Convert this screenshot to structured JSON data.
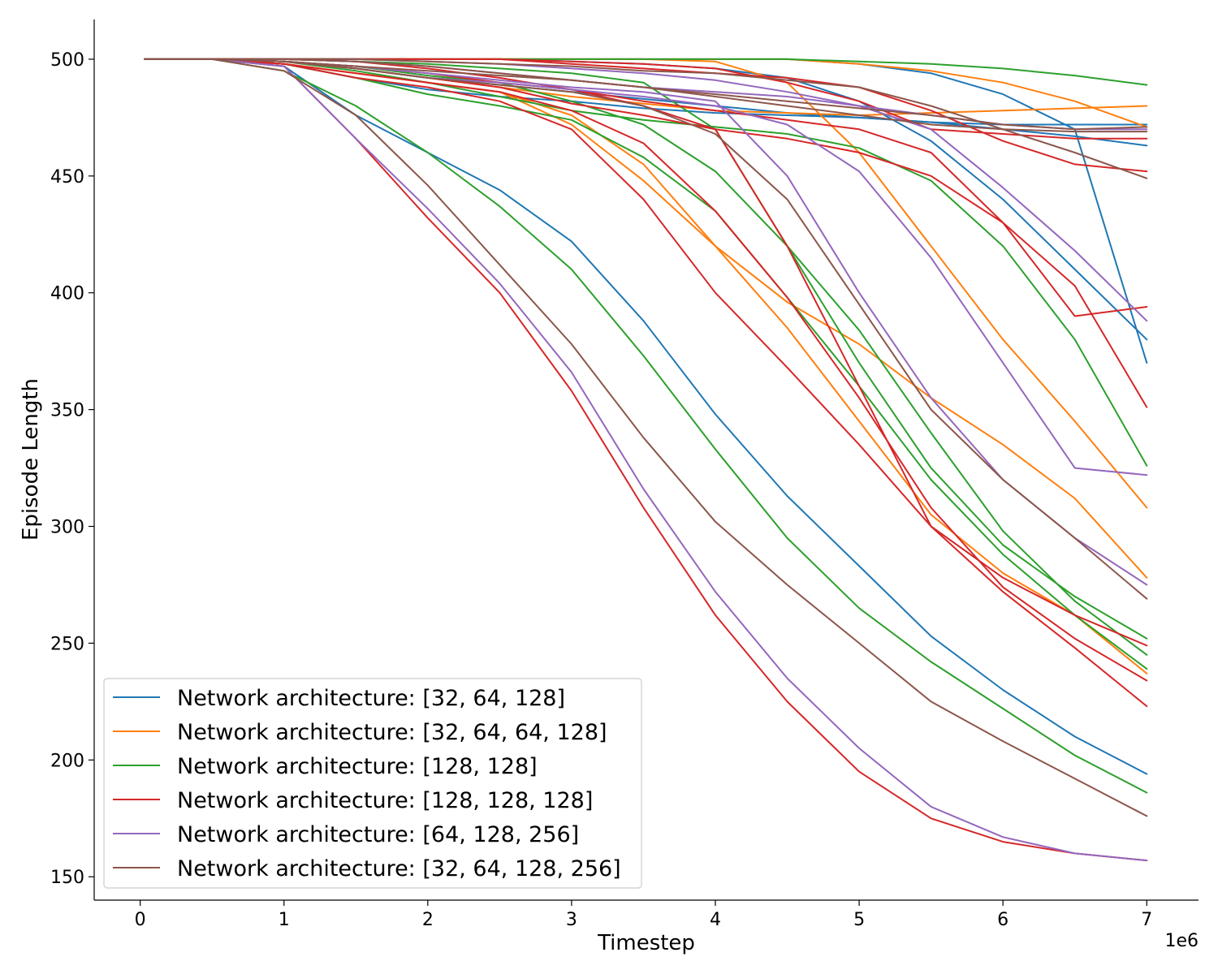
{
  "chart_data": {
    "type": "line",
    "title": "",
    "xlabel": "Timestep",
    "ylabel": "Episode Length",
    "x_offset_text": "1e6",
    "xlim": [
      -0.32,
      7.36
    ],
    "ylim": [
      140,
      517
    ],
    "xticks": [
      0,
      1,
      2,
      3,
      4,
      5,
      6,
      7
    ],
    "xtick_labels": [
      "0",
      "1",
      "2",
      "3",
      "4",
      "5",
      "6",
      "7"
    ],
    "yticks": [
      150,
      200,
      250,
      300,
      350,
      400,
      450,
      500
    ],
    "ytick_labels": [
      "150",
      "200",
      "250",
      "300",
      "350",
      "400",
      "450",
      "500"
    ],
    "grid": false,
    "legend_position": "lower-left",
    "x": [
      0.03,
      0.5,
      1.0,
      1.5,
      2.0,
      2.5,
      3.0,
      3.5,
      4.0,
      4.5,
      5.0,
      5.5,
      6.0,
      6.5,
      7.0
    ],
    "series": [
      {
        "name": "Network architecture: [32, 64, 128]",
        "color": "#1f77b4",
        "runs": [
          [
            500,
            500,
            497,
            476,
            460,
            444,
            422,
            388,
            348,
            313,
            283,
            253,
            230,
            210,
            194
          ],
          [
            500,
            500,
            498,
            492,
            487,
            484,
            482,
            479,
            477,
            476,
            475,
            473,
            472,
            472,
            472
          ],
          [
            500,
            500,
            499,
            496,
            492,
            489,
            486,
            483,
            480,
            477,
            475,
            473,
            470,
            467,
            463
          ],
          [
            500,
            500,
            500,
            500,
            500,
            500,
            499,
            498,
            496,
            492,
            482,
            465,
            440,
            410,
            380
          ],
          [
            500,
            500,
            500,
            500,
            500,
            500,
            500,
            500,
            500,
            500,
            498,
            494,
            485,
            470,
            370
          ]
        ]
      },
      {
        "name": "Network architecture: [32, 64, 64, 128]",
        "color": "#ff7f0e",
        "runs": [
          [
            500,
            500,
            498,
            494,
            490,
            486,
            472,
            448,
            420,
            396,
            378,
            355,
            335,
            312,
            278
          ],
          [
            500,
            500,
            498,
            494,
            490,
            486,
            476,
            455,
            420,
            385,
            345,
            305,
            280,
            262,
            237
          ],
          [
            500,
            500,
            499,
            496,
            492,
            488,
            484,
            481,
            478,
            477,
            476,
            477,
            478,
            479,
            480
          ],
          [
            500,
            500,
            500,
            500,
            500,
            500,
            500,
            500,
            499,
            490,
            460,
            420,
            380,
            345,
            308
          ],
          [
            500,
            500,
            500,
            500,
            500,
            500,
            500,
            500,
            500,
            500,
            498,
            495,
            490,
            482,
            471
          ]
        ]
      },
      {
        "name": "Network architecture: [128, 128]",
        "color": "#2ca02c",
        "runs": [
          [
            500,
            500,
            495,
            480,
            460,
            437,
            410,
            373,
            333,
            295,
            265,
            242,
            222,
            202,
            186
          ],
          [
            500,
            500,
            498,
            492,
            485,
            480,
            474,
            458,
            435,
            398,
            360,
            320,
            288,
            262,
            239
          ],
          [
            500,
            500,
            499,
            497,
            493,
            490,
            482,
            472,
            452,
            420,
            384,
            340,
            298,
            268,
            245
          ],
          [
            500,
            500,
            499,
            495,
            490,
            484,
            478,
            474,
            471,
            468,
            462,
            448,
            420,
            380,
            326
          ],
          [
            500,
            500,
            500,
            499,
            498,
            496,
            494,
            490,
            470,
            420,
            370,
            325,
            292,
            270,
            252
          ],
          [
            500,
            500,
            500,
            500,
            500,
            500,
            500,
            500,
            500,
            500,
            499,
            498,
            496,
            493,
            489
          ]
        ]
      },
      {
        "name": "Network architecture: [128, 128, 128]",
        "color": "#d62728",
        "runs": [
          [
            500,
            500,
            497,
            466,
            432,
            400,
            358,
            308,
            262,
            225,
            195,
            175,
            165,
            160,
            157
          ],
          [
            500,
            500,
            498,
            492,
            488,
            482,
            470,
            440,
            400,
            368,
            335,
            300,
            272,
            248,
            223
          ],
          [
            500,
            500,
            498,
            494,
            490,
            486,
            478,
            464,
            435,
            398,
            355,
            308,
            274,
            252,
            234
          ],
          [
            500,
            500,
            499,
            496,
            492,
            488,
            481,
            476,
            470,
            466,
            460,
            450,
            430,
            403,
            351
          ],
          [
            500,
            500,
            499,
            497,
            494,
            490,
            487,
            482,
            478,
            474,
            470,
            460,
            430,
            390,
            394
          ],
          [
            500,
            500,
            500,
            500,
            500,
            500,
            498,
            496,
            494,
            492,
            488,
            478,
            465,
            455,
            452
          ],
          [
            500,
            500,
            500,
            499,
            496,
            492,
            487,
            480,
            470,
            420,
            360,
            300,
            278,
            262,
            249
          ],
          [
            500,
            500,
            500,
            500,
            500,
            500,
            499,
            498,
            496,
            490,
            482,
            470,
            468,
            466,
            466
          ]
        ]
      },
      {
        "name": "Network architecture: [64, 128, 256]",
        "color": "#9467bd",
        "runs": [
          [
            500,
            500,
            497,
            466,
            436,
            404,
            366,
            316,
            272,
            235,
            205,
            180,
            167,
            160,
            157
          ],
          [
            500,
            500,
            499,
            496,
            492,
            490,
            487,
            484,
            480,
            472,
            452,
            415,
            370,
            325,
            322
          ],
          [
            500,
            500,
            499,
            497,
            494,
            491,
            488,
            486,
            482,
            450,
            400,
            355,
            320,
            295,
            275
          ],
          [
            500,
            500,
            500,
            499,
            497,
            494,
            491,
            488,
            486,
            484,
            480,
            470,
            445,
            418,
            388
          ],
          [
            500,
            500,
            500,
            500,
            499,
            498,
            496,
            494,
            491,
            486,
            480,
            476,
            472,
            470,
            470
          ]
        ]
      },
      {
        "name": "Network architecture: [32, 64, 128, 256]",
        "color": "#8c564b",
        "runs": [
          [
            500,
            500,
            495,
            476,
            446,
            412,
            378,
            338,
            302,
            275,
            250,
            225,
            208,
            192,
            176
          ],
          [
            500,
            500,
            499,
            496,
            492,
            489,
            486,
            480,
            468,
            440,
            395,
            350,
            320,
            295,
            269
          ],
          [
            500,
            500,
            499,
            497,
            495,
            493,
            491,
            488,
            484,
            480,
            476,
            472,
            470,
            469,
            469
          ],
          [
            500,
            500,
            500,
            500,
            499,
            498,
            497,
            495,
            494,
            491,
            488,
            480,
            470,
            460,
            449
          ],
          [
            500,
            500,
            500,
            499,
            497,
            494,
            491,
            488,
            485,
            482,
            479,
            476,
            472,
            470,
            471
          ]
        ]
      }
    ]
  }
}
